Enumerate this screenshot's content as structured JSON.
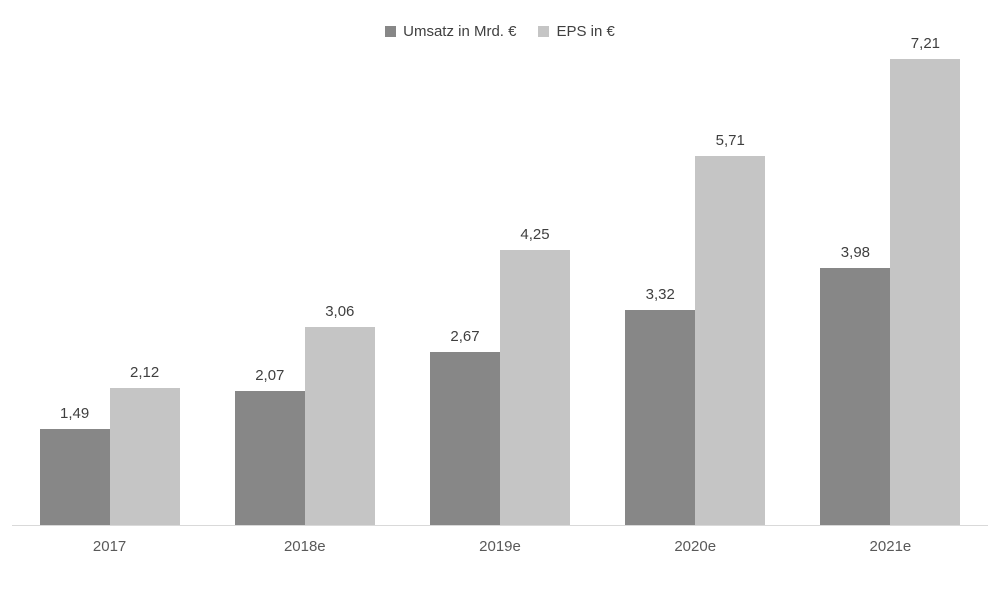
{
  "chart_data": {
    "type": "bar",
    "title": "",
    "xlabel": "",
    "ylabel": "",
    "categories": [
      "2017",
      "2018e",
      "2019e",
      "2020e",
      "2021e"
    ],
    "series": [
      {
        "name": "Umsatz in Mrd. €",
        "color": "#878787",
        "values": [
          1.49,
          2.07,
          2.67,
          3.32,
          3.98
        ],
        "labels": [
          "1,49",
          "2,07",
          "2,67",
          "3,32",
          "3,98"
        ]
      },
      {
        "name": "EPS in €",
        "color": "#c5c5c5",
        "values": [
          2.12,
          3.06,
          4.25,
          5.71,
          7.21
        ],
        "labels": [
          "2,12",
          "3,06",
          "4,25",
          "5,71",
          "7,21"
        ]
      }
    ],
    "ylim": [
      0,
      7.5
    ],
    "grid": false,
    "legend_position": "top-center",
    "decimal_separator": ","
  }
}
